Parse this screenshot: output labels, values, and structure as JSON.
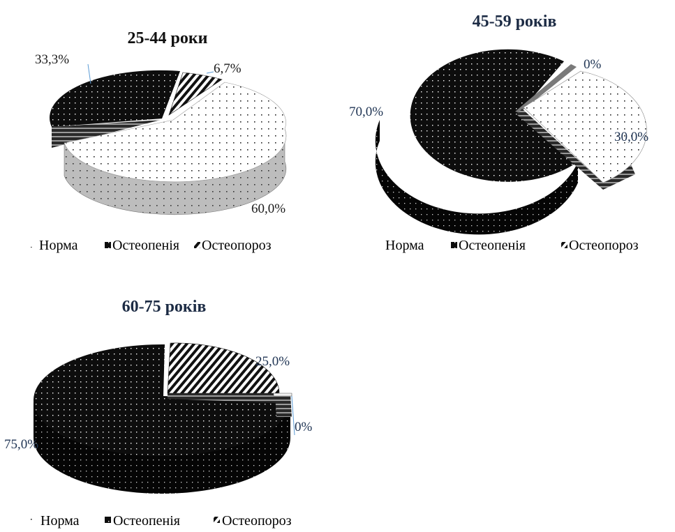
{
  "colors": {
    "text_dark": "#1a1a1a",
    "title_navy": "#1c2b44",
    "label_navy": "#203554",
    "leader_line": "#5b9bd5",
    "segment_black": "#0d0d0d",
    "segment_white": "#ffffff",
    "side_grey": "#8c8c8c"
  },
  "icons": {
    "norma": "dotted-white-swatch-icon",
    "osteopenia": "black-swatch-icon",
    "osteoporoz": "striped-swatch-icon"
  },
  "chart_data": [
    {
      "type": "pie",
      "title": "25-44 роки",
      "categories": [
        "Норма",
        "Остеопенія",
        "Остеопороз"
      ],
      "values": [
        60.0,
        33.3,
        6.7
      ],
      "labels": [
        "60,0%",
        "33,3%",
        "6,7%"
      ],
      "legend": [
        "Норма",
        "Остеопенія",
        "Остеопороз"
      ],
      "legend_position": "bottom"
    },
    {
      "type": "pie",
      "title": "45-59 років",
      "categories": [
        "Норма",
        "Остеопенія",
        "Остеопороз"
      ],
      "values": [
        30.0,
        70.0,
        0
      ],
      "labels": [
        "30,0%",
        "70,0%",
        "0%"
      ],
      "legend": [
        "Норма",
        "Остеопенія",
        "Остеопороз"
      ],
      "legend_position": "bottom"
    },
    {
      "type": "pie",
      "title": "60-75 років",
      "categories": [
        "Норма",
        "Остеопенія",
        "Остеопороз"
      ],
      "values": [
        0,
        75.0,
        25.0
      ],
      "labels": [
        "0%",
        "75,0%",
        "25,0%"
      ],
      "legend": [
        "Норма",
        "Остеопенія",
        "Остеопороз"
      ],
      "legend_position": "bottom"
    }
  ]
}
